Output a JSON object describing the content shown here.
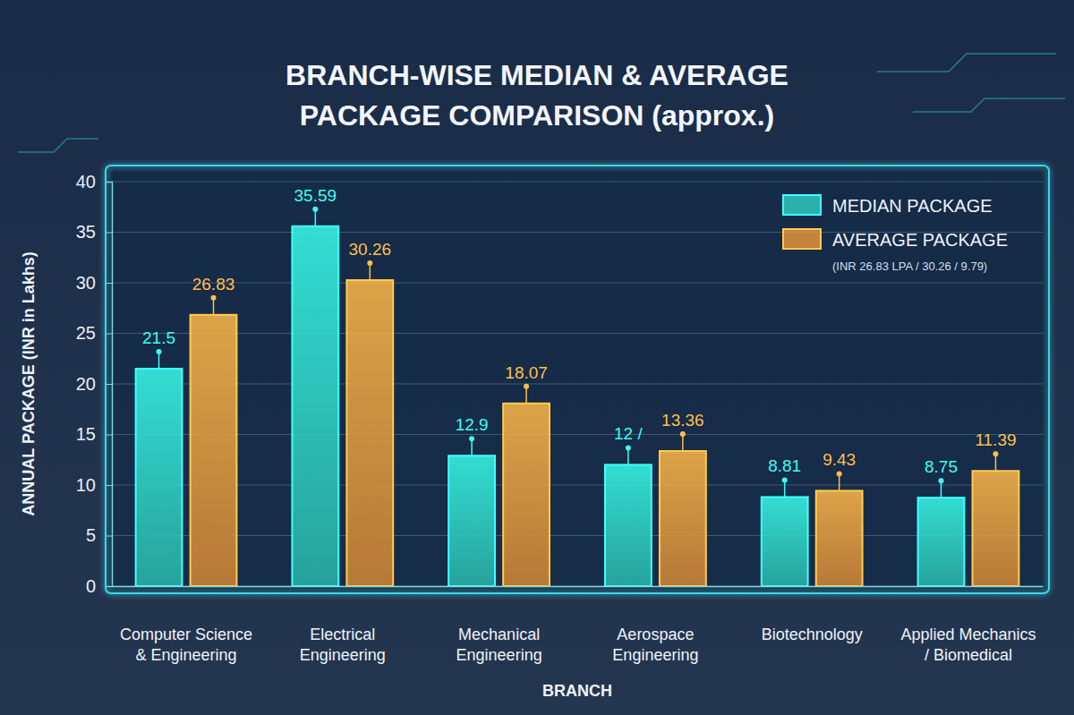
{
  "chart_data": {
    "type": "bar",
    "title": "BRANCH-WISE MEDIAN & AVERAGE PACKAGE COMPARISON (approx.)",
    "x_label": "BRANCH",
    "y_label": "ANNUAL PACKAGE (INR in Lakhs)",
    "categories": [
      "Computer Science & Engineering",
      "Electrical Engineering",
      "Mechanical Engineering",
      "Aerospace Engineering",
      "Biotechnology",
      "Applied Mechanics / Biomedical"
    ],
    "series": [
      {
        "name": "MEDIAN PACKAGE",
        "color": "#2fd3c4",
        "values": [
          21.5,
          35.59,
          12.9,
          12,
          8.81,
          8.75
        ],
        "value_labels": [
          "21.5",
          "35.59",
          "12.9",
          "12 /",
          "8.81",
          "8.75"
        ]
      },
      {
        "name": "AVERAGE PACKAGE",
        "color": "#f39a3c",
        "values": [
          26.83,
          30.26,
          18.07,
          13.36,
          9.43,
          11.39
        ]
      }
    ],
    "ylim": [
      0,
      40
    ],
    "yticks": [
      0,
      5,
      10,
      15,
      20,
      25,
      30,
      35,
      40
    ],
    "grid": true,
    "legend": "top-right",
    "data_labels": true,
    "annotations": [
      "(INR 26.83 LPA / 30.26 / 9.79)"
    ]
  }
}
